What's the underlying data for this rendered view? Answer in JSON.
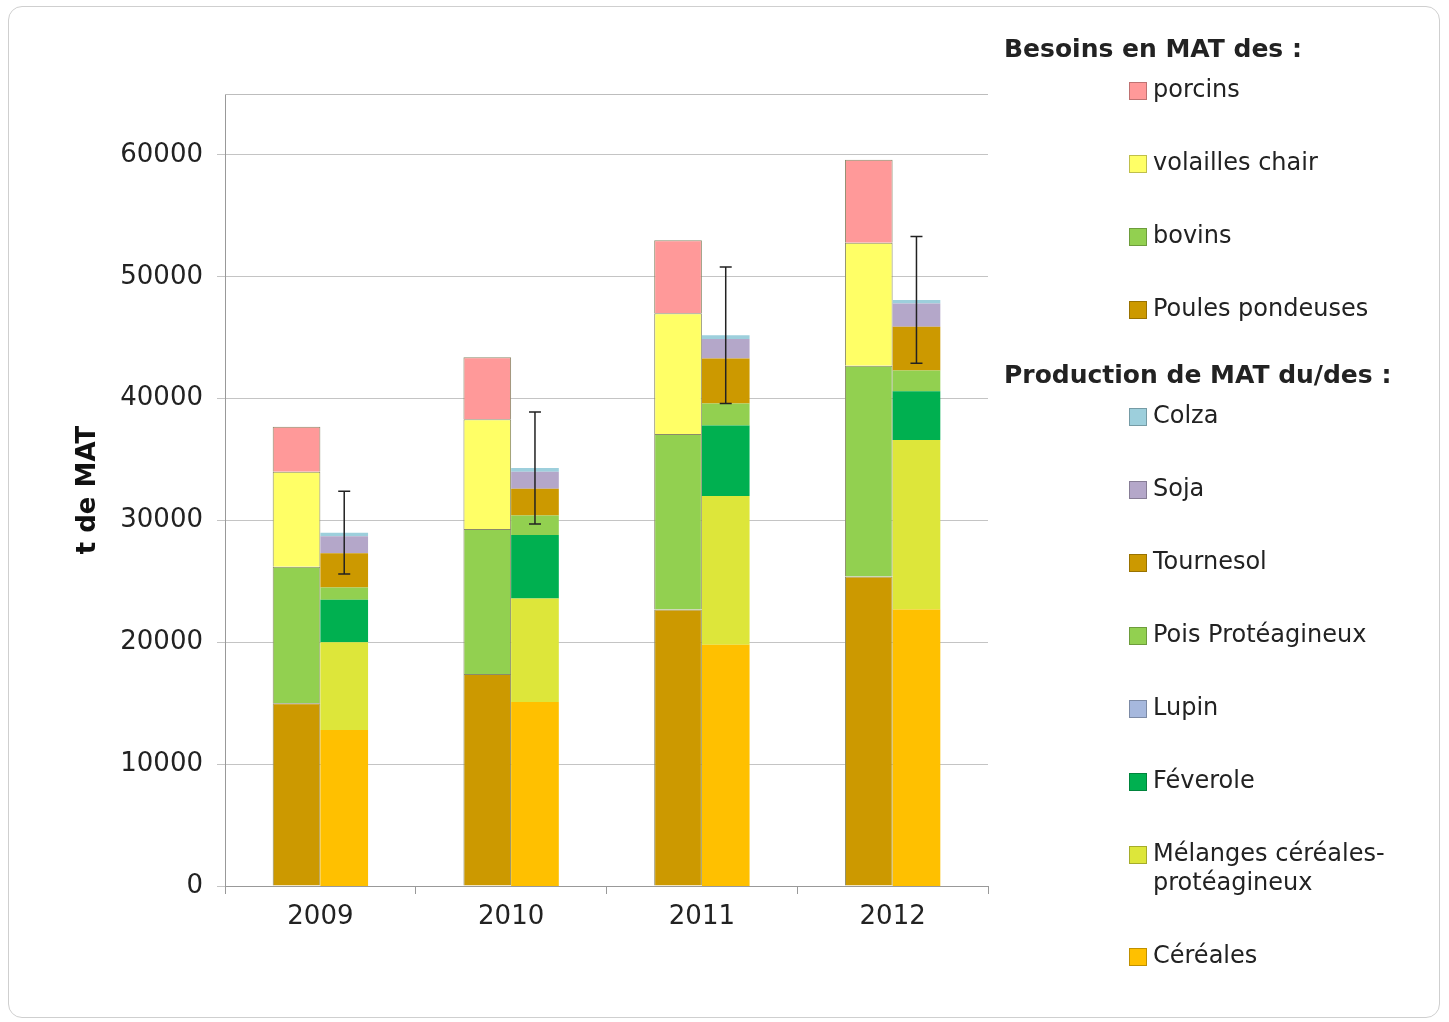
{
  "chart_data": [
    {
      "type": "bar",
      "stacked": true,
      "ylabel": "t de MAT",
      "legend_title": "Besoins en MAT des :",
      "categories": [
        "2009",
        "2010",
        "2011",
        "2012"
      ],
      "ylim": [
        0,
        65000
      ],
      "yticks": [
        0,
        10000,
        20000,
        30000,
        40000,
        50000,
        60000
      ],
      "grid": "y",
      "legend": "right",
      "series": [
        {
          "name": "Poules pondeuses",
          "color": "#cc9900",
          "values": [
            15000,
            17400,
            22700,
            25400
          ]
        },
        {
          "name": "bovins",
          "color": "#92d050",
          "values": [
            11200,
            11900,
            14400,
            17300
          ]
        },
        {
          "name": "volailles chair",
          "color": "#ffff66",
          "values": [
            7800,
            9000,
            9900,
            10100
          ]
        },
        {
          "name": "porcins",
          "color": "#ff9999",
          "values": [
            3700,
            5100,
            6000,
            6800
          ]
        }
      ]
    },
    {
      "type": "bar",
      "stacked": true,
      "legend_title": "Production de MAT du/des :",
      "categories": [
        "2009",
        "2010",
        "2011",
        "2012"
      ],
      "ylim": [
        0,
        65000
      ],
      "yticks": [
        0,
        10000,
        20000,
        30000,
        40000,
        50000,
        60000
      ],
      "tick_labels": false,
      "legend": "right",
      "series": [
        {
          "name": "Céréales",
          "color": "#ffc000",
          "values": [
            12800,
            15100,
            19800,
            22700
          ]
        },
        {
          "name": "Mélanges céréales-protéagineux",
          "color": "#dde63a",
          "values": [
            7200,
            8500,
            12200,
            13900
          ]
        },
        {
          "name": "Féverole",
          "color": "#00b050",
          "values": [
            3500,
            5200,
            5800,
            4000
          ]
        },
        {
          "name": "Lupin",
          "color": "#a6b8dd",
          "values": [
            null,
            null,
            null,
            null
          ]
        },
        {
          "name": "Pois Protéagineux",
          "color": "#92d050",
          "values": [
            1000,
            1600,
            1800,
            1700
          ]
        },
        {
          "name": "Tournesol",
          "color": "#cc9900",
          "values": [
            2800,
            2200,
            3700,
            3600
          ]
        },
        {
          "name": "Soja",
          "color": "#b4a7c9",
          "values": [
            1400,
            1400,
            1600,
            1900
          ]
        },
        {
          "name": "Colza",
          "color": "#9dcfdc",
          "values": [
            300,
            300,
            300,
            300
          ],
          "errors": [
            3400,
            4600,
            5600,
            5200
          ]
        }
      ]
    }
  ]
}
